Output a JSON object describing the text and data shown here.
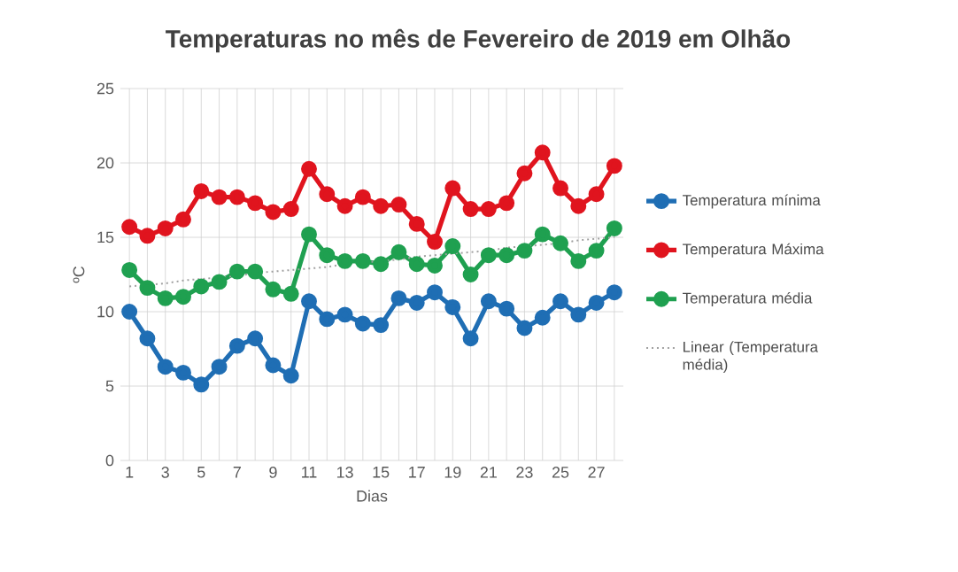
{
  "chart_data": {
    "type": "line",
    "title": "Temperaturas no mês de Fevereiro de 2019 em Olhão",
    "xlabel": "Dias",
    "ylabel": "ºC",
    "categories": [
      "1",
      null,
      "3",
      null,
      "5",
      null,
      "7",
      null,
      "9",
      null,
      "11",
      null,
      "13",
      null,
      "15",
      null,
      "17",
      null,
      "19",
      null,
      "21",
      null,
      "23",
      null,
      "25",
      null,
      "27",
      null
    ],
    "ylim": [
      0,
      25
    ],
    "yticks": [
      0,
      5,
      10,
      15,
      20,
      25
    ],
    "grid": true,
    "legend": "right",
    "marker": "circle",
    "series": [
      {
        "name": "Temperatura mínima",
        "color": "#1f6eb4",
        "values": [
          10.0,
          8.2,
          6.3,
          5.9,
          5.1,
          6.3,
          7.7,
          8.2,
          6.4,
          5.7,
          10.7,
          9.5,
          9.8,
          9.2,
          9.1,
          10.9,
          10.6,
          11.3,
          10.3,
          8.2,
          10.7,
          10.2,
          8.9,
          9.6,
          10.7,
          9.8,
          10.6,
          11.3
        ]
      },
      {
        "name": "Temperatura Máxima",
        "color": "#e0141e",
        "values": [
          15.7,
          15.1,
          15.6,
          16.2,
          18.1,
          17.7,
          17.7,
          17.3,
          16.7,
          16.9,
          19.6,
          17.9,
          17.1,
          17.7,
          17.1,
          17.2,
          15.9,
          14.7,
          18.3,
          16.9,
          16.9,
          17.3,
          19.3,
          20.7,
          18.3,
          17.1,
          17.9,
          19.8
        ]
      },
      {
        "name": "Temperatura média",
        "color": "#1fa050",
        "values": [
          12.8,
          11.6,
          10.9,
          11.0,
          11.7,
          12.0,
          12.7,
          12.7,
          11.5,
          11.2,
          15.2,
          13.8,
          13.4,
          13.4,
          13.2,
          14.0,
          13.2,
          13.1,
          14.4,
          12.5,
          13.8,
          13.8,
          14.1,
          15.2,
          14.6,
          13.4,
          14.1,
          15.6
        ]
      },
      {
        "name": "Linear (Temperatura média)",
        "color": "#a0a0a0",
        "marker": "none",
        "line_style": "dotted",
        "values": [
          11.7,
          11.8,
          11.9,
          12.1,
          12.2,
          12.3,
          12.4,
          12.6,
          12.7,
          12.8,
          12.9,
          13.0,
          13.2,
          13.3,
          13.4,
          13.5,
          13.7,
          13.8,
          13.9,
          14.0,
          14.1,
          14.3,
          14.4,
          14.5,
          14.6,
          14.8,
          14.9,
          15.0
        ]
      }
    ]
  }
}
